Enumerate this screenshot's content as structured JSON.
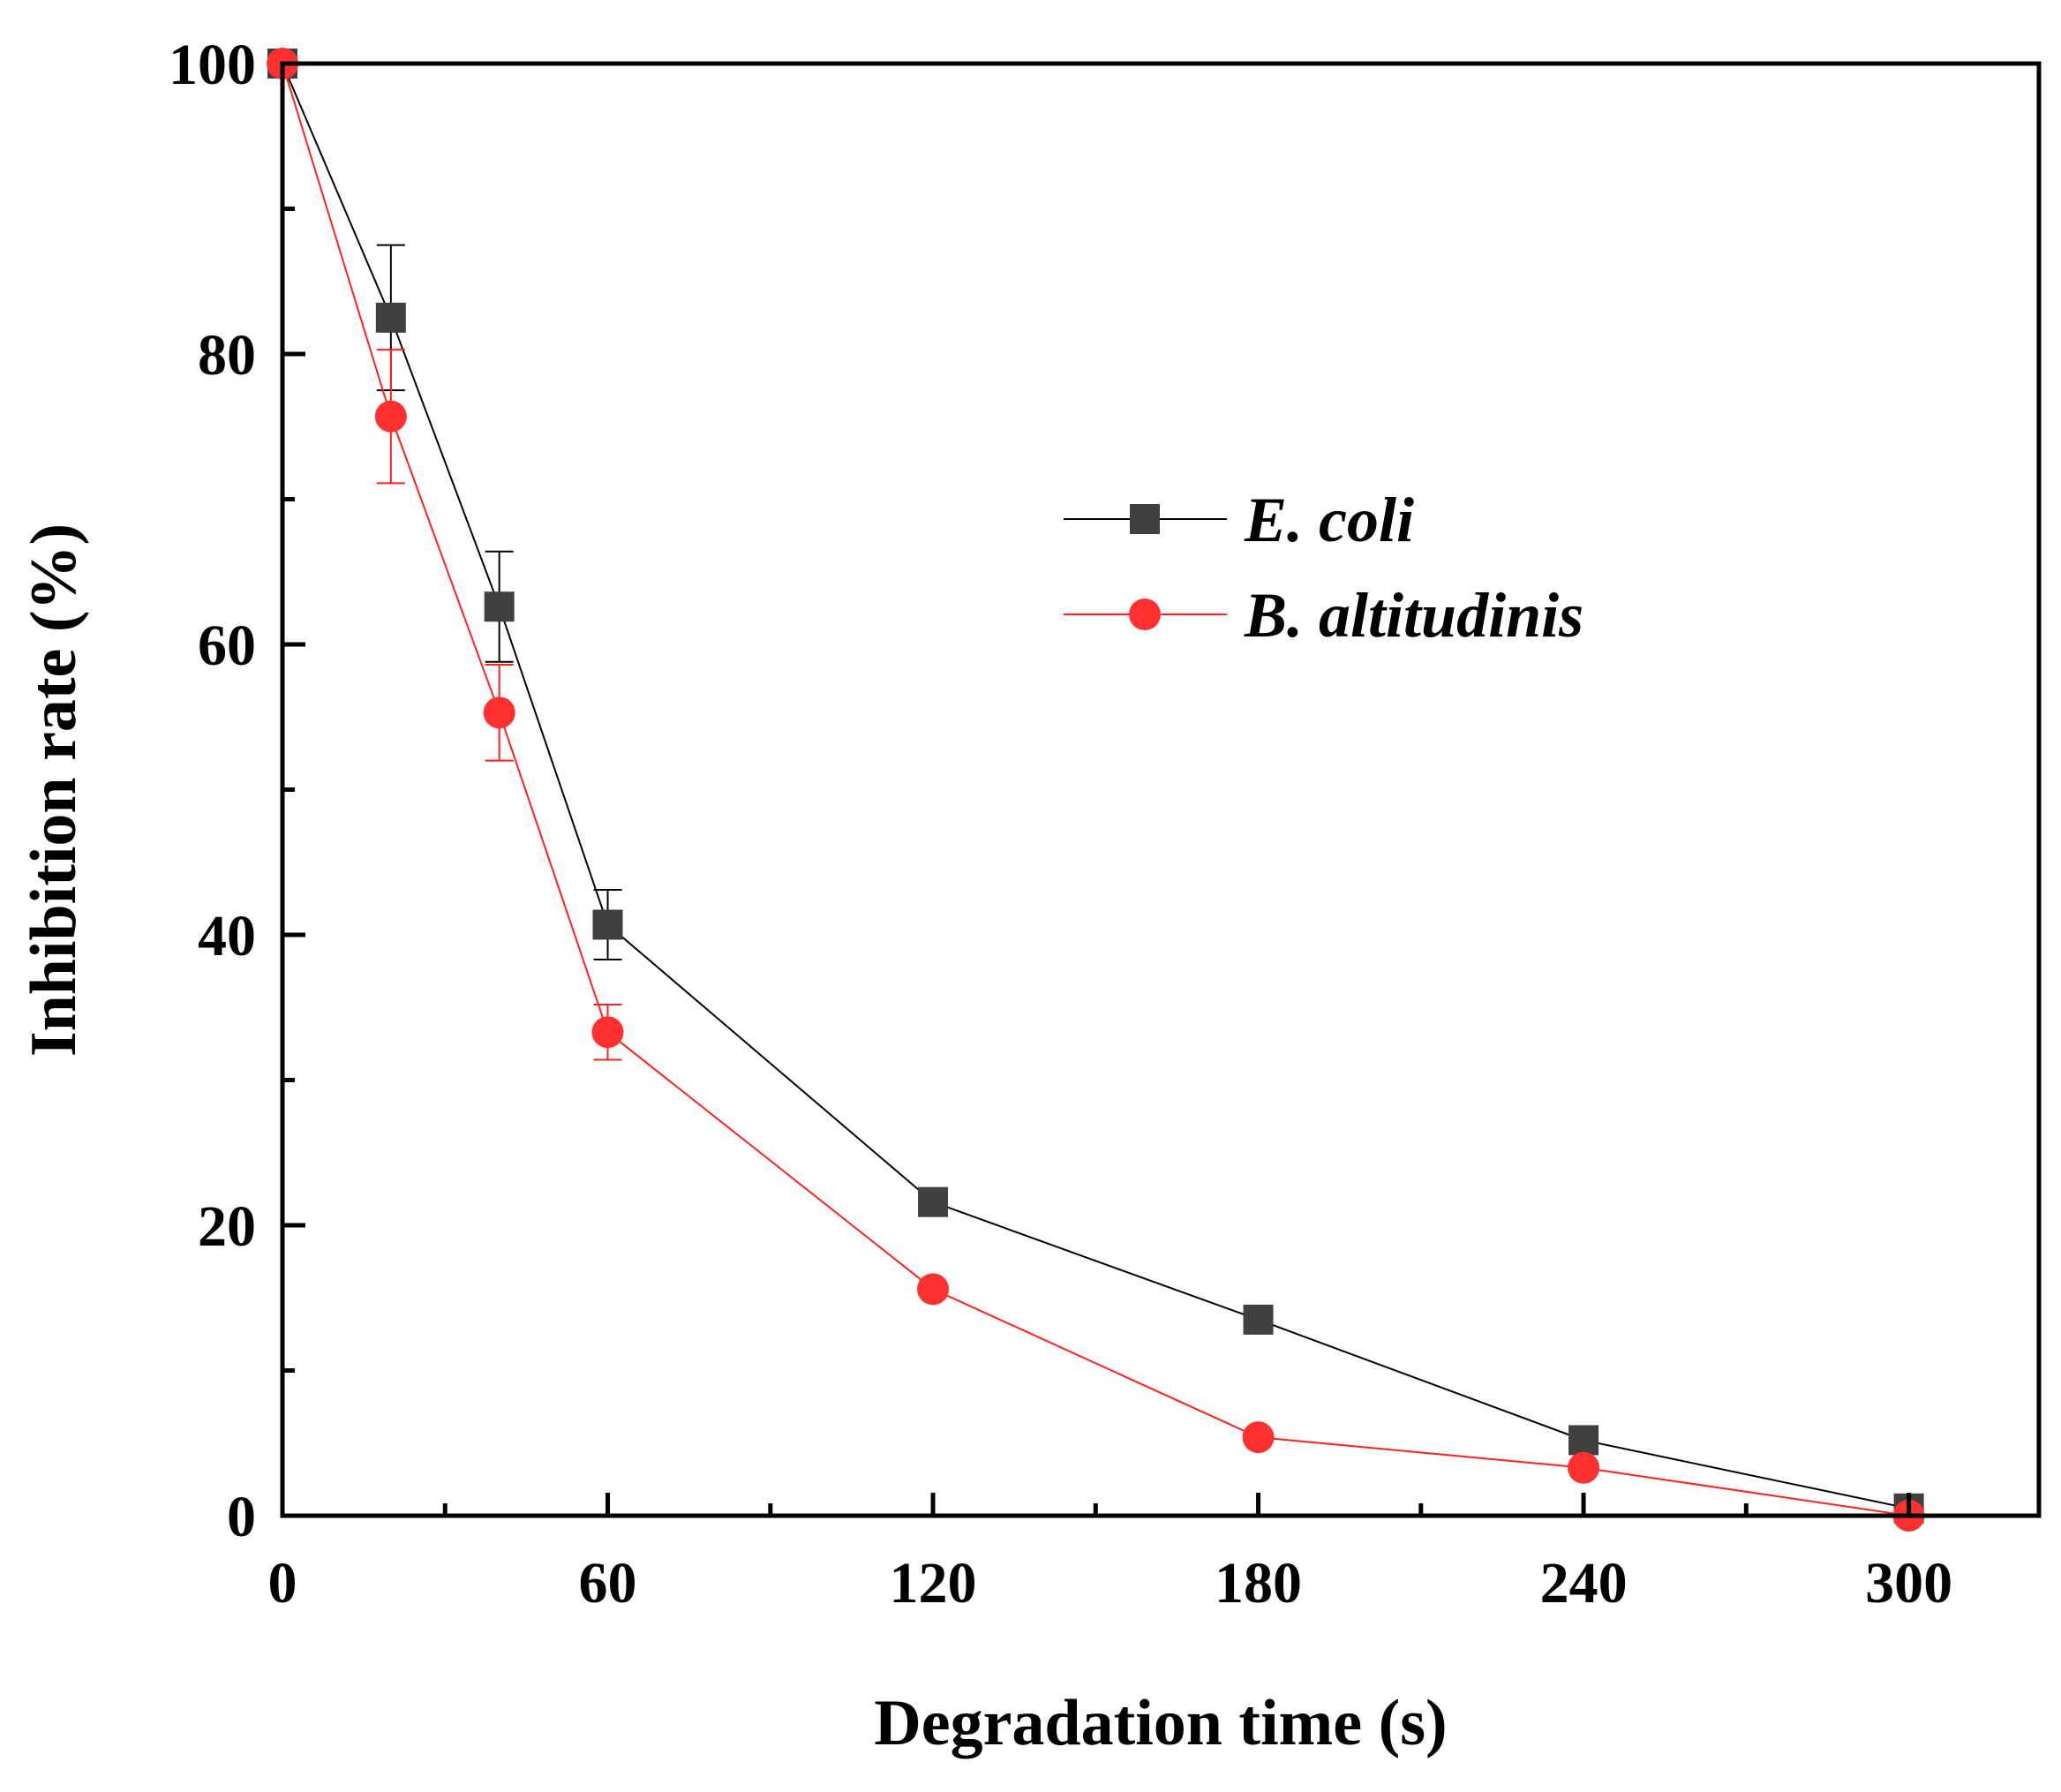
{
  "chart_data": {
    "type": "line",
    "xlabel": "Degradation time (s)",
    "ylabel": "Inhibition rate (%)",
    "xlim": [
      0,
      324
    ],
    "ylim": [
      0,
      100
    ],
    "x_ticks": [
      0,
      60,
      120,
      180,
      240,
      300
    ],
    "x_minor_ticks": [
      30,
      90,
      150,
      210,
      270
    ],
    "y_ticks": [
      0,
      20,
      40,
      60,
      80,
      100
    ],
    "y_minor_ticks": [
      10,
      30,
      50,
      70,
      90
    ],
    "grid": false,
    "legend_position": "center-right",
    "series": [
      {
        "name": "E. coli",
        "color": "#000000",
        "marker_color": "#404040",
        "marker": "square",
        "x": [
          0,
          20,
          40,
          60,
          120,
          180,
          240,
          300
        ],
        "y": [
          100,
          82.5,
          62.6,
          40.7,
          21.6,
          13.5,
          5.2,
          0.5
        ],
        "error": [
          0,
          5.0,
          3.8,
          2.4,
          0.9,
          0,
          0,
          0
        ]
      },
      {
        "name": "B. altitudinis",
        "color": "#ff2020",
        "marker_color": "#ff3030",
        "marker": "circle",
        "x": [
          0,
          20,
          40,
          60,
          120,
          180,
          240,
          300
        ],
        "y": [
          100,
          75.7,
          55.3,
          33.3,
          15.6,
          5.4,
          3.3,
          0
        ],
        "error": [
          0,
          4.6,
          3.3,
          1.9,
          0,
          0,
          0,
          0
        ]
      }
    ]
  }
}
